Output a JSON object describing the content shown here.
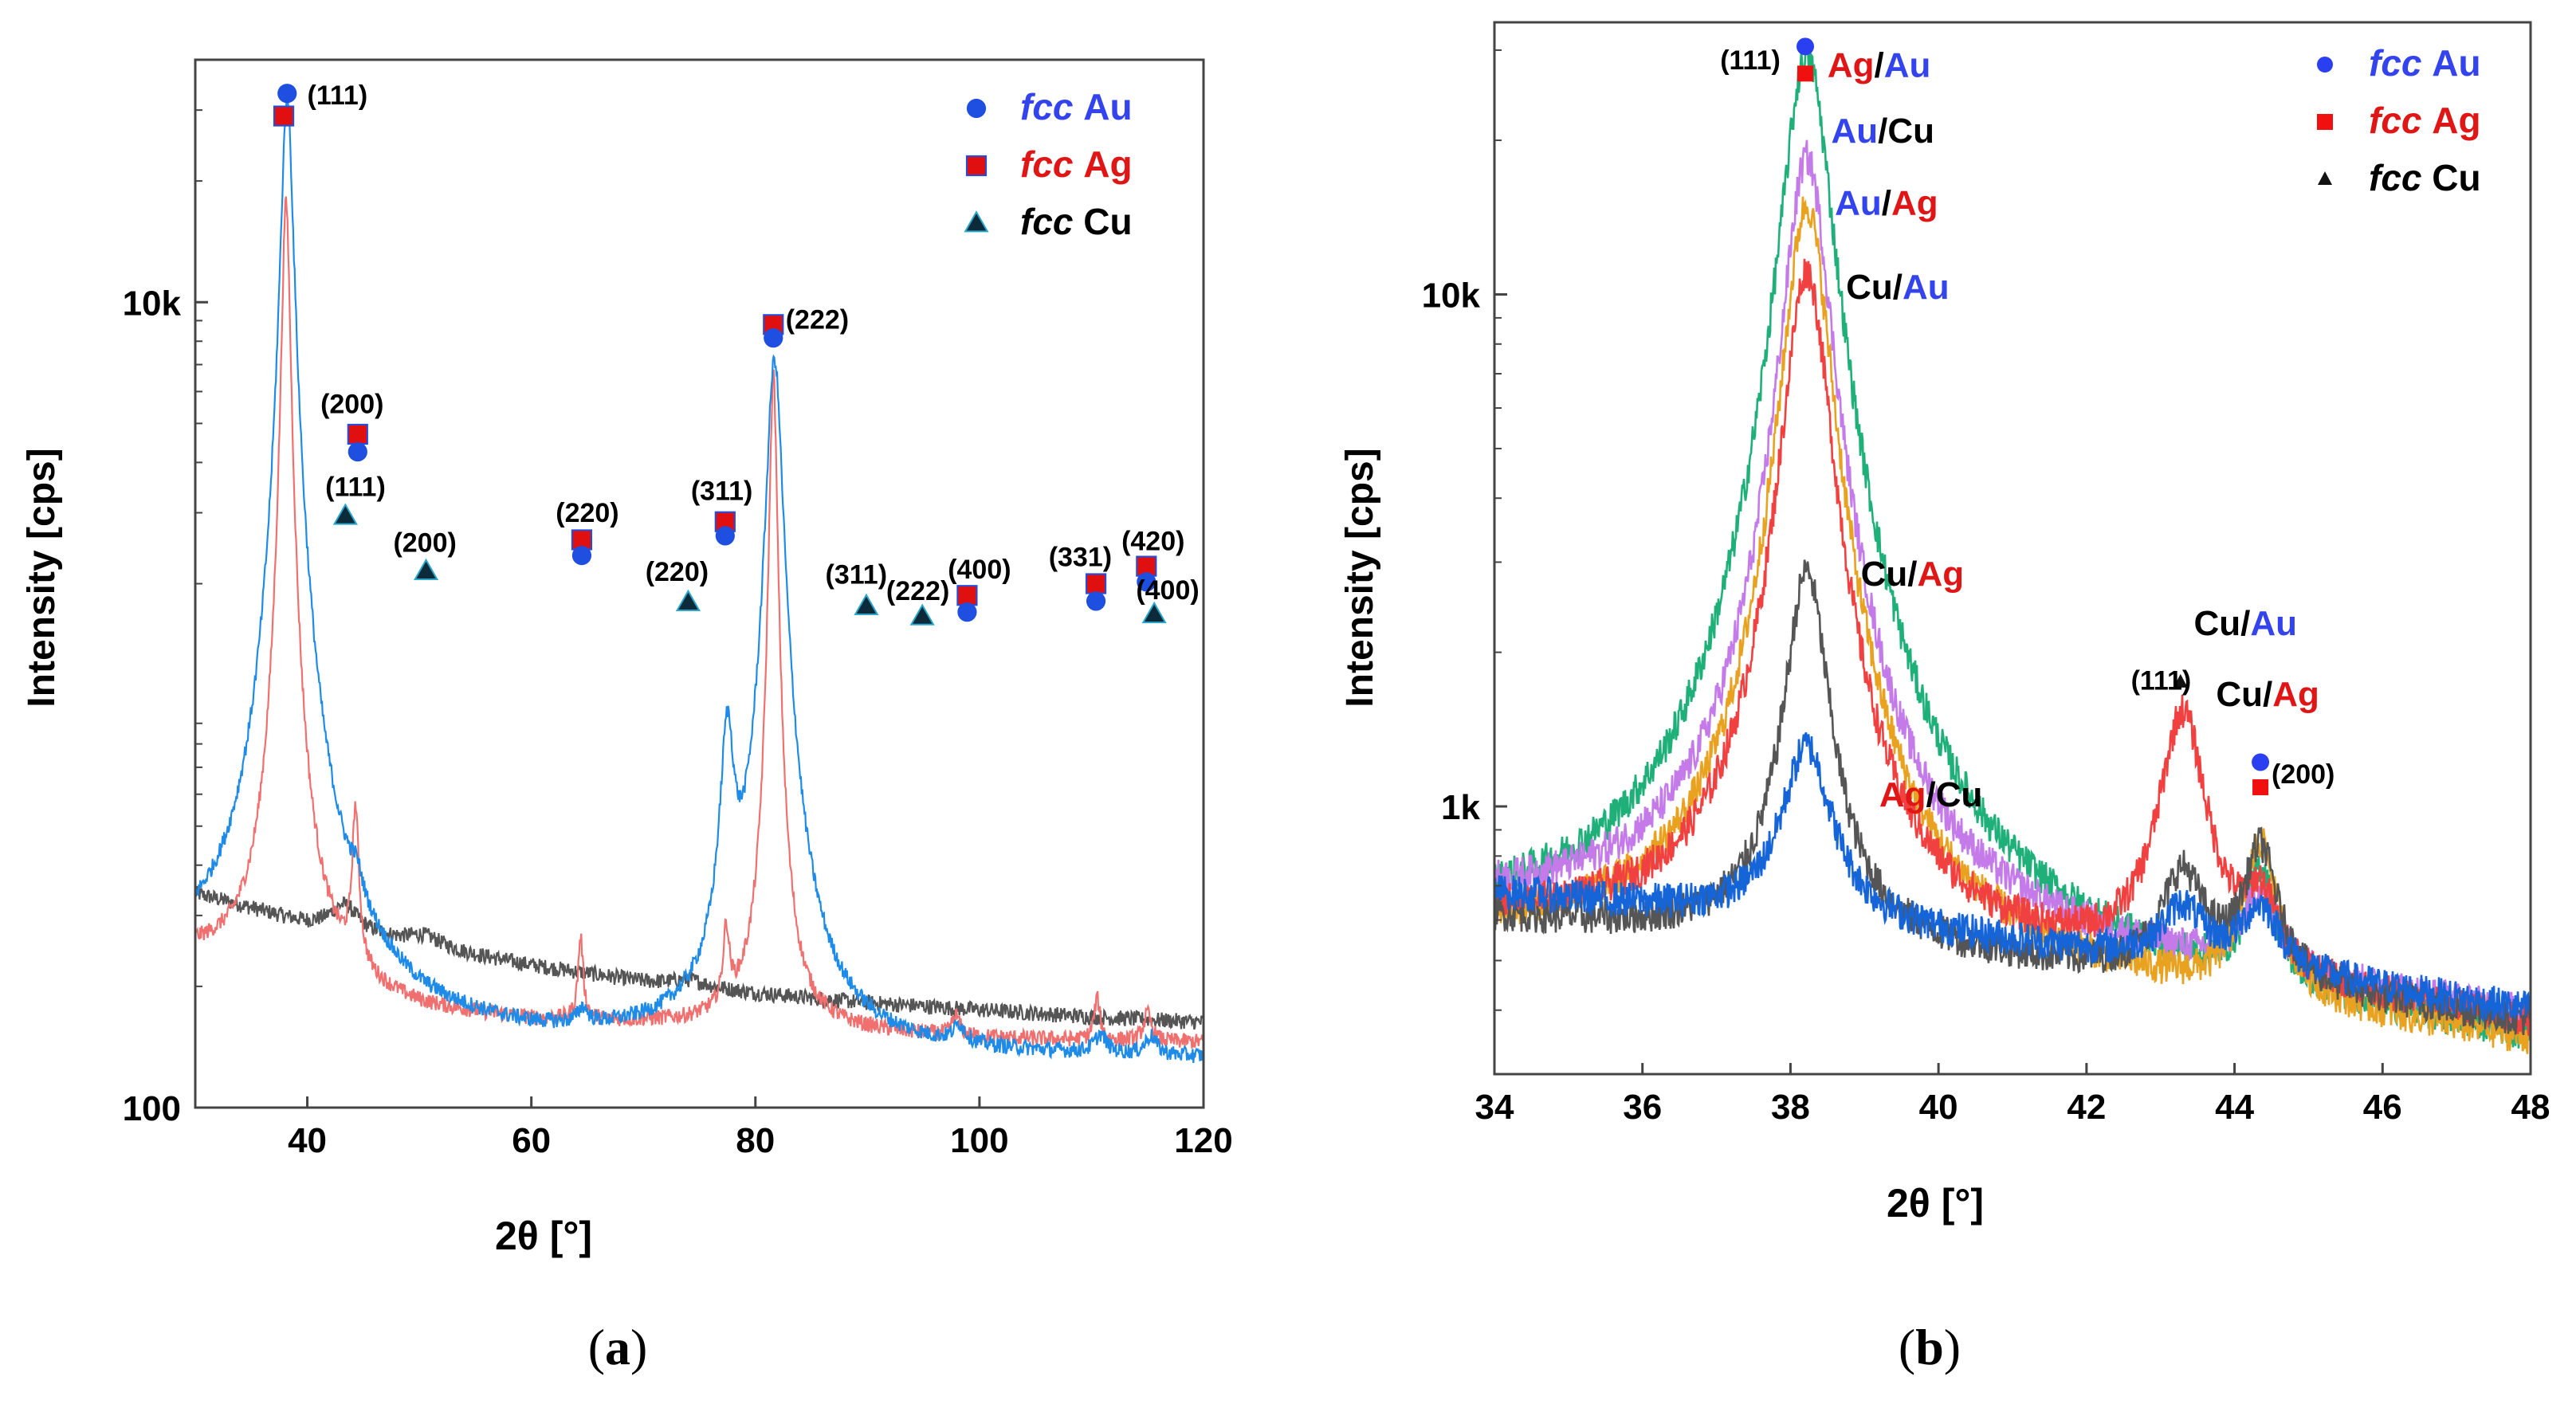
{
  "colors": {
    "au_marker": "#1f4fe0",
    "ag_marker": "#e01010",
    "cu_marker": "#0d2a3a",
    "au_text": "#3344ee",
    "ag_text": "#e01515",
    "black": "#000000"
  },
  "chart_data": [
    {
      "type": "line",
      "panel": "a",
      "caption": {
        "open": "(",
        "letter": "a",
        "close": ")"
      },
      "xlabel": "2θ [°]",
      "ylabel": "Intensity [cps]",
      "yscale": "log",
      "xlim": [
        30,
        120
      ],
      "ylim": [
        100,
        40000
      ],
      "xticks": [
        {
          "v": 40,
          "label": "40"
        },
        {
          "v": 60,
          "label": "60"
        },
        {
          "v": 80,
          "label": "80"
        },
        {
          "v": 100,
          "label": "100"
        },
        {
          "v": 120,
          "label": "120"
        }
      ],
      "yticks": [
        {
          "v": 10000,
          "label": "10k"
        },
        {
          "v": 100,
          "label": "100"
        }
      ],
      "legend": {
        "placement": "top-right",
        "items": [
          {
            "marker": "circle",
            "italic": "fcc",
            "element": "Au",
            "color": "#3344ee",
            "marker_color": "#1f4fe0"
          },
          {
            "marker": "square",
            "italic": "fcc",
            "element": "Ag",
            "color": "#e01515",
            "marker_color": "#e01010"
          },
          {
            "marker": "triangle",
            "italic": "fcc",
            "element": "Cu",
            "color": "#000000",
            "marker_color": "#0d2a3a"
          }
        ]
      },
      "series": [
        {
          "name": "gray trace",
          "color": "#555555",
          "baseline": [
            [
              30,
              340
            ],
            [
              40,
              285
            ],
            [
              50,
              250
            ],
            [
              60,
              225
            ],
            [
              70,
              205
            ],
            [
              80,
              192
            ],
            [
              90,
              182
            ],
            [
              100,
              175
            ],
            [
              110,
              168
            ],
            [
              120,
              163
            ]
          ],
          "peaks": [
            [
              43.3,
              45,
              1.5
            ],
            [
              50.4,
              18,
              2.0
            ],
            [
              74.1,
              8,
              2.0
            ]
          ]
        },
        {
          "name": "red trace",
          "color": "#f07070",
          "baseline": [
            [
              30,
              235
            ],
            [
              35,
              215
            ],
            [
              40,
              198
            ],
            [
              45,
              180
            ],
            [
              50,
              170
            ],
            [
              60,
              162
            ],
            [
              70,
              160
            ],
            [
              80,
              156
            ],
            [
              90,
              152
            ],
            [
              100,
              148
            ],
            [
              110,
              146
            ],
            [
              120,
              145
            ]
          ],
          "peaks": [
            [
              38.1,
              17500,
              0.35
            ],
            [
              44.3,
              330,
              0.3
            ],
            [
              64.4,
              100,
              0.25
            ],
            [
              77.4,
              100,
              0.3
            ],
            [
              81.6,
              6500,
              0.3
            ],
            [
              97.9,
              18,
              0.4
            ],
            [
              110.5,
              40,
              0.3
            ],
            [
              115.0,
              25,
              0.4
            ]
          ]
        },
        {
          "name": "blue trace",
          "color": "#1e8be8",
          "baseline": [
            [
              30,
              222
            ],
            [
              35,
              205
            ],
            [
              40,
              178
            ],
            [
              45,
              162
            ],
            [
              50,
              150
            ],
            [
              60,
              142
            ],
            [
              70,
              140
            ],
            [
              80,
              138
            ],
            [
              90,
              134
            ],
            [
              100,
              133
            ],
            [
              110,
              132
            ],
            [
              120,
              131
            ]
          ],
          "peaks": [
            [
              38.2,
              32000,
              0.5
            ],
            [
              44.4,
              50,
              0.6
            ],
            [
              64.6,
              15,
              0.5
            ],
            [
              77.5,
              660,
              0.6
            ],
            [
              81.7,
              7100,
              0.65
            ],
            [
              98.2,
              15,
              0.6
            ],
            [
              110.8,
              15,
              0.6
            ],
            [
              115.3,
              15,
              0.6
            ]
          ]
        }
      ],
      "markers": [
        {
          "type": "circle",
          "x": 38.2,
          "y": 33000
        },
        {
          "type": "square",
          "x": 37.9,
          "y": 29000
        },
        {
          "type": "square",
          "x": 44.5,
          "y": 4700
        },
        {
          "type": "circle",
          "x": 44.5,
          "y": 4250
        },
        {
          "type": "triangle",
          "x": 43.4,
          "y": 2950
        },
        {
          "type": "triangle",
          "x": 50.6,
          "y": 2150
        },
        {
          "type": "square",
          "x": 64.5,
          "y": 2570
        },
        {
          "type": "circle",
          "x": 64.5,
          "y": 2350
        },
        {
          "type": "triangle",
          "x": 74.0,
          "y": 1800
        },
        {
          "type": "square",
          "x": 77.3,
          "y": 2850
        },
        {
          "type": "circle",
          "x": 77.3,
          "y": 2630
        },
        {
          "type": "square",
          "x": 81.6,
          "y": 8800
        },
        {
          "type": "circle",
          "x": 81.6,
          "y": 8150
        },
        {
          "type": "triangle",
          "x": 89.9,
          "y": 1760
        },
        {
          "type": "triangle",
          "x": 94.9,
          "y": 1660
        },
        {
          "type": "square",
          "x": 98.9,
          "y": 1870
        },
        {
          "type": "circle",
          "x": 98.9,
          "y": 1700
        },
        {
          "type": "square",
          "x": 110.4,
          "y": 2000
        },
        {
          "type": "circle",
          "x": 110.4,
          "y": 1810
        },
        {
          "type": "square",
          "x": 114.9,
          "y": 2210
        },
        {
          "type": "circle",
          "x": 114.9,
          "y": 2020
        },
        {
          "type": "triangle",
          "x": 115.6,
          "y": 1680
        }
      ],
      "annotations": [
        {
          "text": "(111)",
          "x": 40.0,
          "y": 31000,
          "anchor": "start"
        },
        {
          "text": "(200)",
          "x": 44.0,
          "y": 5300,
          "anchor": "middle"
        },
        {
          "text": "(111)",
          "x": 44.3,
          "y": 3300,
          "anchor": "middle"
        },
        {
          "text": "(200)",
          "x": 50.5,
          "y": 2400,
          "anchor": "middle"
        },
        {
          "text": "(220)",
          "x": 65.0,
          "y": 2850,
          "anchor": "middle"
        },
        {
          "text": "(311)",
          "x": 77.0,
          "y": 3230,
          "anchor": "middle"
        },
        {
          "text": "(222)",
          "x": 82.7,
          "y": 8600,
          "anchor": "start"
        },
        {
          "text": "(220)",
          "x": 73.0,
          "y": 2030,
          "anchor": "middle"
        },
        {
          "text": "(311)",
          "x": 89.0,
          "y": 2000,
          "anchor": "middle"
        },
        {
          "text": "(222)",
          "x": 94.5,
          "y": 1820,
          "anchor": "middle"
        },
        {
          "text": "(400)",
          "x": 100.0,
          "y": 2060,
          "anchor": "middle"
        },
        {
          "text": "(331)",
          "x": 109.0,
          "y": 2210,
          "anchor": "middle"
        },
        {
          "text": "(420)",
          "x": 115.5,
          "y": 2420,
          "anchor": "middle"
        },
        {
          "text": "(400)",
          "x": 116.8,
          "y": 1830,
          "anchor": "middle"
        }
      ]
    },
    {
      "type": "line",
      "panel": "b",
      "caption": {
        "open": "(",
        "letter": "b",
        "close": ")"
      },
      "xlabel": "2θ [°]",
      "ylabel": "Intensity [cps]",
      "yscale": "log",
      "xlim": [
        34,
        48
      ],
      "ylim": [
        300,
        34000
      ],
      "xticks": [
        {
          "v": 34,
          "label": "34"
        },
        {
          "v": 36,
          "label": "36"
        },
        {
          "v": 38,
          "label": "38"
        },
        {
          "v": 40,
          "label": "40"
        },
        {
          "v": 42,
          "label": "42"
        },
        {
          "v": 44,
          "label": "44"
        },
        {
          "v": 46,
          "label": "46"
        },
        {
          "v": 48,
          "label": "48"
        }
      ],
      "yticks": [
        {
          "v": 10000,
          "label": "10k"
        },
        {
          "v": 1000,
          "label": "1k"
        }
      ],
      "legend": {
        "placement": "top-right",
        "items": [
          {
            "marker": "circle",
            "italic": "fcc",
            "element": "Au",
            "color": "#3344ee",
            "marker_color": "#2a3ff0"
          },
          {
            "marker": "square",
            "italic": "fcc",
            "element": "Ag",
            "color": "#e01515",
            "marker_color": "#f01010"
          },
          {
            "marker": "triangle",
            "italic": "fcc",
            "element": "Cu",
            "color": "#000000",
            "marker_color": "#111111"
          }
        ]
      },
      "series": [
        {
          "name": "Ag/Au",
          "color": "#1fb07a",
          "base_start": 560,
          "base_end": 330,
          "peak111": 29000,
          "w111": 0.32,
          "peakCu": 0,
          "peakAu200": 300,
          "wAu": 0.2
        },
        {
          "name": "Au/Cu",
          "color": "#c47ae8",
          "base_start": 640,
          "base_end": 380,
          "peak111": 18000,
          "w111": 0.3,
          "peakCu": 0,
          "peakAu200": 200,
          "wAu": 0.25
        },
        {
          "name": "Au/Ag",
          "color": "#e8a220",
          "base_start": 560,
          "base_end": 340,
          "peak111": 14500,
          "w111": 0.3,
          "peakCu": 0,
          "peakAu200": 420,
          "wAu": 0.25
        },
        {
          "name": "Cu/Au",
          "color": "#f04040",
          "base_start": 600,
          "base_end": 370,
          "peak111": 10600,
          "w111": 0.3,
          "peakCu": 1050,
          "peakAu200": 180,
          "wAu": 0.25
        },
        {
          "name": "Cu/Ag",
          "color": "#555555",
          "base_start": 610,
          "base_end": 380,
          "peak111": 2350,
          "w111": 0.28,
          "peakCu": 280,
          "peakAu200": 380,
          "wAu": 0.25
        },
        {
          "name": "Ag/Cu",
          "color": "#1565d8",
          "base_start": 680,
          "base_end": 400,
          "peak111": 720,
          "w111": 0.35,
          "peakCu": 140,
          "peakAu200": 160,
          "wAu": 0.3
        }
      ],
      "markers": [
        {
          "type": "circle",
          "x": 38.2,
          "y": 30500
        },
        {
          "type": "square",
          "x": 38.2,
          "y": 27000
        },
        {
          "type": "triangle",
          "x": 43.27,
          "y": 1750
        },
        {
          "type": "circle",
          "x": 44.35,
          "y": 1220
        },
        {
          "type": "square",
          "x": 44.35,
          "y": 1090
        }
      ],
      "annotations": [
        {
          "text": "(111)",
          "x": 37.05,
          "y": 27500,
          "anchor": "start"
        },
        {
          "text": "(111)",
          "x": 42.6,
          "y": 1690,
          "anchor": "start"
        },
        {
          "text": "(200)",
          "x": 44.5,
          "y": 1110,
          "anchor": "start"
        }
      ],
      "curve_labels": [
        {
          "x": 38.5,
          "y": 26600,
          "parts": [
            {
              "t": "Ag",
              "c": "ag"
            },
            {
              "t": "/",
              "c": "black"
            },
            {
              "t": "Au",
              "c": "au"
            }
          ]
        },
        {
          "x": 38.55,
          "y": 19800,
          "parts": [
            {
              "t": "Au",
              "c": "au"
            },
            {
              "t": "/",
              "c": "black"
            },
            {
              "t": "Cu",
              "c": "black"
            }
          ]
        },
        {
          "x": 38.6,
          "y": 14300,
          "parts": [
            {
              "t": "Au",
              "c": "au"
            },
            {
              "t": "/",
              "c": "black"
            },
            {
              "t": "Ag",
              "c": "ag"
            }
          ]
        },
        {
          "x": 38.75,
          "y": 9800,
          "parts": [
            {
              "t": "Cu",
              "c": "black"
            },
            {
              "t": "/",
              "c": "black"
            },
            {
              "t": "Au",
              "c": "au"
            }
          ]
        },
        {
          "x": 38.95,
          "y": 2700,
          "parts": [
            {
              "t": "Cu",
              "c": "black"
            },
            {
              "t": "/",
              "c": "black"
            },
            {
              "t": "Ag",
              "c": "ag"
            }
          ]
        },
        {
          "x": 39.2,
          "y": 1000,
          "parts": [
            {
              "t": "Ag",
              "c": "ag"
            },
            {
              "t": "/",
              "c": "black"
            },
            {
              "t": "Cu",
              "c": "black"
            }
          ]
        },
        {
          "x": 43.45,
          "y": 2160,
          "parts": [
            {
              "t": "Cu",
              "c": "black"
            },
            {
              "t": "/",
              "c": "black"
            },
            {
              "t": "Au",
              "c": "au"
            }
          ]
        },
        {
          "x": 43.75,
          "y": 1570,
          "parts": [
            {
              "t": "Cu",
              "c": "black"
            },
            {
              "t": "/",
              "c": "black"
            },
            {
              "t": "Ag",
              "c": "ag"
            }
          ]
        }
      ]
    }
  ]
}
